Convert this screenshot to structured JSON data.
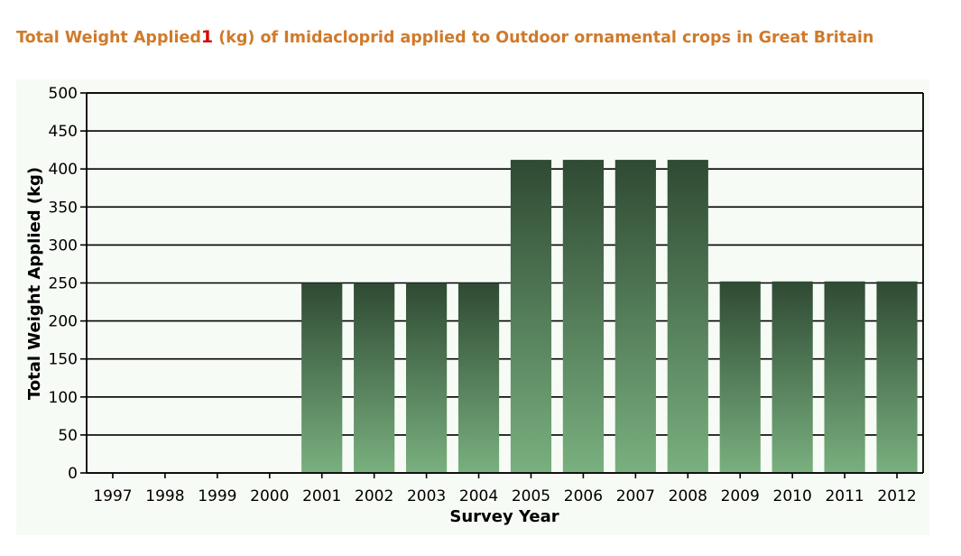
{
  "title": {
    "part1": "Total Weight Applied",
    "footnote_marker": "1",
    "part2": " (kg) of Imidacloprid applied to Outdoor ornamental crops in Great Britain"
  },
  "colors": {
    "title": "#d07a2a",
    "footnote": "#d40000",
    "plot_background": "#f7fbf5",
    "bar_top": "#2f4a33",
    "bar_bottom": "#79b07f",
    "grid": "#000000"
  },
  "chart_data": {
    "type": "bar",
    "title": "Total Weight Applied1 (kg) of Imidacloprid applied to Outdoor ornamental crops in Great Britain",
    "xlabel": "Survey Year",
    "ylabel": "Total Weight Applied (kg)",
    "categories": [
      "1997",
      "1998",
      "1999",
      "2000",
      "2001",
      "2002",
      "2003",
      "2004",
      "2005",
      "2006",
      "2007",
      "2008",
      "2009",
      "2010",
      "2011",
      "2012"
    ],
    "values": [
      0,
      0,
      0,
      0,
      250,
      250,
      250,
      250,
      412,
      412,
      412,
      412,
      252,
      252,
      252,
      252
    ],
    "ylim": [
      0,
      500
    ],
    "yticks": [
      0,
      50,
      100,
      150,
      200,
      250,
      300,
      350,
      400,
      450,
      500
    ],
    "grid": true,
    "legend": "none"
  }
}
